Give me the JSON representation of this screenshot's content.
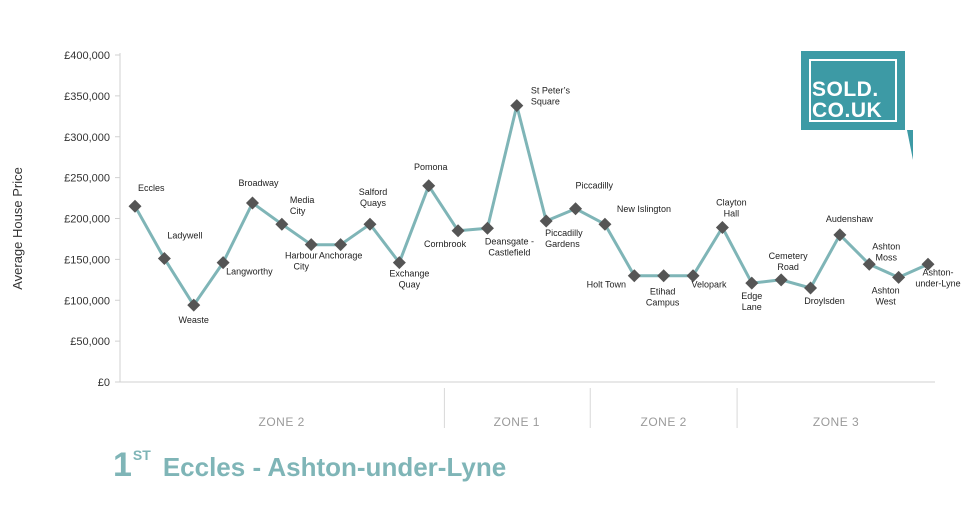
{
  "logo": {
    "line1": "SOLD.",
    "line2": "CO.UK",
    "color": "#3d9aa5"
  },
  "heading": {
    "rank": "1",
    "rank_suffix": "ST",
    "route": "Eccles - Ashton-under-Lyne",
    "color": "#7fb5b7"
  },
  "chart_data": {
    "type": "line",
    "title": "",
    "xlabel": "",
    "ylabel": "Average House Price",
    "ylim": [
      0,
      400000
    ],
    "yticks": [
      0,
      50000,
      100000,
      150000,
      200000,
      250000,
      300000,
      350000,
      400000
    ],
    "ytick_labels": [
      "£0",
      "£50,000",
      "£100,000",
      "£150,000",
      "£200,000",
      "£250,000",
      "£300,000",
      "£350,000",
      "£400,000"
    ],
    "grid": false,
    "line_color": "#7fb5b7",
    "marker_color": "#555555",
    "marker": "diamond",
    "zones": [
      {
        "label": "ZONE 2",
        "start": 0,
        "end": 10
      },
      {
        "label": "ZONE 1",
        "start": 11,
        "end": 15
      },
      {
        "label": "ZONE 2",
        "start": 16,
        "end": 20
      },
      {
        "label": "ZONE 3",
        "start": 21,
        "end": 27
      }
    ],
    "points": [
      {
        "label": "Eccles",
        "value": 215000
      },
      {
        "label": "Ladywell",
        "value": 151000
      },
      {
        "label": "Weaste",
        "value": 94000
      },
      {
        "label": "Langworthy",
        "value": 146000
      },
      {
        "label": "Broadway",
        "value": 219000
      },
      {
        "label": "Media City",
        "value": 193000
      },
      {
        "label": "Harbour City",
        "value": 168000
      },
      {
        "label": "Anchorage",
        "value": 168000
      },
      {
        "label": "Salford Quays",
        "value": 193000
      },
      {
        "label": "Exchange Quay",
        "value": 146000
      },
      {
        "label": "Pomona",
        "value": 240000
      },
      {
        "label": "Cornbrook",
        "value": 185000
      },
      {
        "label": "Deansgate - Castlefield",
        "value": 188000
      },
      {
        "label": "St Peter's Square",
        "value": 338000
      },
      {
        "label": "Piccadilly Gardens",
        "value": 197000
      },
      {
        "label": "Piccadilly",
        "value": 212000
      },
      {
        "label": "New Islington",
        "value": 193000
      },
      {
        "label": "Holt Town",
        "value": 130000
      },
      {
        "label": "Etihad Campus",
        "value": 130000
      },
      {
        "label": "Velopark",
        "value": 130000
      },
      {
        "label": "Clayton Hall",
        "value": 189000
      },
      {
        "label": "Edge Lane",
        "value": 121000
      },
      {
        "label": "Cemetery Road",
        "value": 125000
      },
      {
        "label": "Droylsden",
        "value": 115000
      },
      {
        "label": "Audenshaw",
        "value": 180000
      },
      {
        "label": "Ashton Moss",
        "value": 144000
      },
      {
        "label": "Ashton West",
        "value": 128000
      },
      {
        "label": "Ashton-under-Lyne",
        "value": 144000
      }
    ]
  }
}
